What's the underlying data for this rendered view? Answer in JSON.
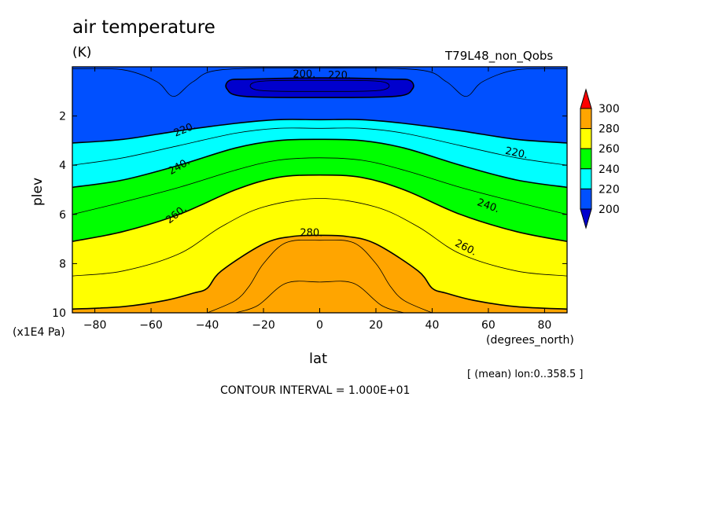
{
  "chart_data": {
    "type": "heatmap",
    "title": "air temperature",
    "units": "(K)",
    "run_label": "T79L48_non_Qobs",
    "xlabel": "lat",
    "x_units": "(degrees_north)",
    "ylabel": "plev",
    "y_units": "(x1E4 Pa)",
    "xlim": [
      -88,
      88
    ],
    "ylim": [
      0,
      10
    ],
    "y_inverted": true,
    "x_ticks": [
      "-80",
      "-60",
      "-40",
      "-20",
      "0",
      "20",
      "40",
      "60",
      "80"
    ],
    "y_ticks": [
      "2",
      "4",
      "6",
      "8",
      "10"
    ],
    "contour_labels": [
      "200.",
      "220.",
      "220.",
      "220.",
      "240.",
      "240.",
      "260.",
      "260.",
      "280."
    ],
    "colorbar": {
      "levels": [
        "200",
        "220",
        "240",
        "260",
        "280",
        "300"
      ],
      "colors": [
        "#0000cd",
        "#0050ff",
        "#00ffff",
        "#00ff00",
        "#ffff00",
        "#ffa500",
        "#ff0000"
      ]
    },
    "contour_interval_text": "CONTOUR INTERVAL = 1.000E+01",
    "mean_info": "[ (mean) lon:0..358.5 ]",
    "boundaries": [
      {
        "value": 210,
        "points": [
          [
            -88,
            0.08
          ],
          [
            -70,
            0.12
          ],
          [
            -58,
            0.6
          ],
          [
            -52,
            1.2
          ],
          [
            -45,
            0.6
          ],
          [
            -35,
            0.12
          ],
          [
            0,
            0.05
          ],
          [
            35,
            0.12
          ],
          [
            45,
            0.6
          ],
          [
            52,
            1.2
          ],
          [
            58,
            0.6
          ],
          [
            70,
            0.12
          ],
          [
            88,
            0.08
          ]
        ]
      },
      {
        "value": 220,
        "points": [
          [
            -88,
            3.1
          ],
          [
            -70,
            2.95
          ],
          [
            -50,
            2.6
          ],
          [
            -30,
            2.3
          ],
          [
            -15,
            2.15
          ],
          [
            0,
            2.15
          ],
          [
            15,
            2.15
          ],
          [
            30,
            2.3
          ],
          [
            50,
            2.6
          ],
          [
            70,
            2.95
          ],
          [
            88,
            3.1
          ]
        ]
      },
      {
        "value": 230,
        "points": [
          [
            -88,
            4.0
          ],
          [
            -70,
            3.7
          ],
          [
            -50,
            3.2
          ],
          [
            -30,
            2.7
          ],
          [
            -15,
            2.5
          ],
          [
            0,
            2.5
          ],
          [
            15,
            2.5
          ],
          [
            30,
            2.7
          ],
          [
            50,
            3.2
          ],
          [
            70,
            3.7
          ],
          [
            88,
            4.0
          ]
        ]
      },
      {
        "value": 240,
        "points": [
          [
            -88,
            4.9
          ],
          [
            -70,
            4.6
          ],
          [
            -50,
            4.0
          ],
          [
            -30,
            3.3
          ],
          [
            -15,
            3.0
          ],
          [
            0,
            2.95
          ],
          [
            15,
            3.0
          ],
          [
            30,
            3.3
          ],
          [
            50,
            4.0
          ],
          [
            70,
            4.6
          ],
          [
            88,
            4.9
          ]
        ]
      },
      {
        "value": 250,
        "points": [
          [
            -88,
            6.0
          ],
          [
            -70,
            5.5
          ],
          [
            -50,
            4.9
          ],
          [
            -30,
            4.2
          ],
          [
            -15,
            3.8
          ],
          [
            0,
            3.7
          ],
          [
            15,
            3.8
          ],
          [
            30,
            4.2
          ],
          [
            50,
            4.9
          ],
          [
            70,
            5.5
          ],
          [
            88,
            6.0
          ]
        ]
      },
      {
        "value": 260,
        "points": [
          [
            -88,
            7.1
          ],
          [
            -70,
            6.7
          ],
          [
            -50,
            6.0
          ],
          [
            -30,
            5.0
          ],
          [
            -15,
            4.5
          ],
          [
            0,
            4.4
          ],
          [
            15,
            4.5
          ],
          [
            30,
            5.0
          ],
          [
            50,
            6.0
          ],
          [
            70,
            6.7
          ],
          [
            88,
            7.1
          ]
        ]
      },
      {
        "value": 270,
        "points": [
          [
            -88,
            8.5
          ],
          [
            -70,
            8.3
          ],
          [
            -50,
            7.6
          ],
          [
            -35,
            6.5
          ],
          [
            -20,
            5.7
          ],
          [
            0,
            5.35
          ],
          [
            20,
            5.7
          ],
          [
            35,
            6.5
          ],
          [
            50,
            7.6
          ],
          [
            70,
            8.3
          ],
          [
            88,
            8.5
          ]
        ]
      },
      {
        "value": 280,
        "points": [
          [
            -88,
            9.85
          ],
          [
            -70,
            9.75
          ],
          [
            -55,
            9.5
          ],
          [
            -45,
            9.2
          ],
          [
            -40,
            9.0
          ],
          [
            -35,
            8.3
          ],
          [
            -20,
            7.2
          ],
          [
            -10,
            6.9
          ],
          [
            0,
            6.85
          ],
          [
            10,
            6.9
          ],
          [
            20,
            7.2
          ],
          [
            35,
            8.3
          ],
          [
            40,
            9.0
          ],
          [
            45,
            9.2
          ],
          [
            55,
            9.5
          ],
          [
            70,
            9.75
          ],
          [
            88,
            9.85
          ]
        ]
      },
      {
        "value": 285,
        "points": [
          [
            -40,
            10.0
          ],
          [
            -30,
            9.5
          ],
          [
            -25,
            8.9
          ],
          [
            -20,
            8.0
          ],
          [
            -12,
            7.15
          ],
          [
            0,
            7.05
          ],
          [
            12,
            7.15
          ],
          [
            20,
            8.0
          ],
          [
            25,
            8.9
          ],
          [
            30,
            9.5
          ],
          [
            40,
            10.0
          ]
        ]
      },
      {
        "value": 290,
        "points": [
          [
            -30,
            10.0
          ],
          [
            -22,
            9.7
          ],
          [
            -12,
            8.8
          ],
          [
            0,
            8.75
          ],
          [
            12,
            8.8
          ],
          [
            22,
            9.7
          ],
          [
            30,
            10.0
          ]
        ]
      }
    ],
    "cold_core": {
      "value": 200,
      "outer": [
        [
          -32,
          0.55
        ],
        [
          -25,
          0.5
        ],
        [
          0,
          0.45
        ],
        [
          25,
          0.5
        ],
        [
          32,
          0.55
        ],
        [
          33,
          0.9
        ],
        [
          27,
          1.2
        ],
        [
          0,
          1.25
        ],
        [
          -27,
          1.2
        ],
        [
          -33,
          0.9
        ]
      ],
      "inner": [
        [
          -22,
          0.6
        ],
        [
          0,
          0.55
        ],
        [
          22,
          0.6
        ],
        [
          22,
          0.95
        ],
        [
          0,
          1.0
        ],
        [
          -22,
          0.95
        ]
      ]
    }
  }
}
